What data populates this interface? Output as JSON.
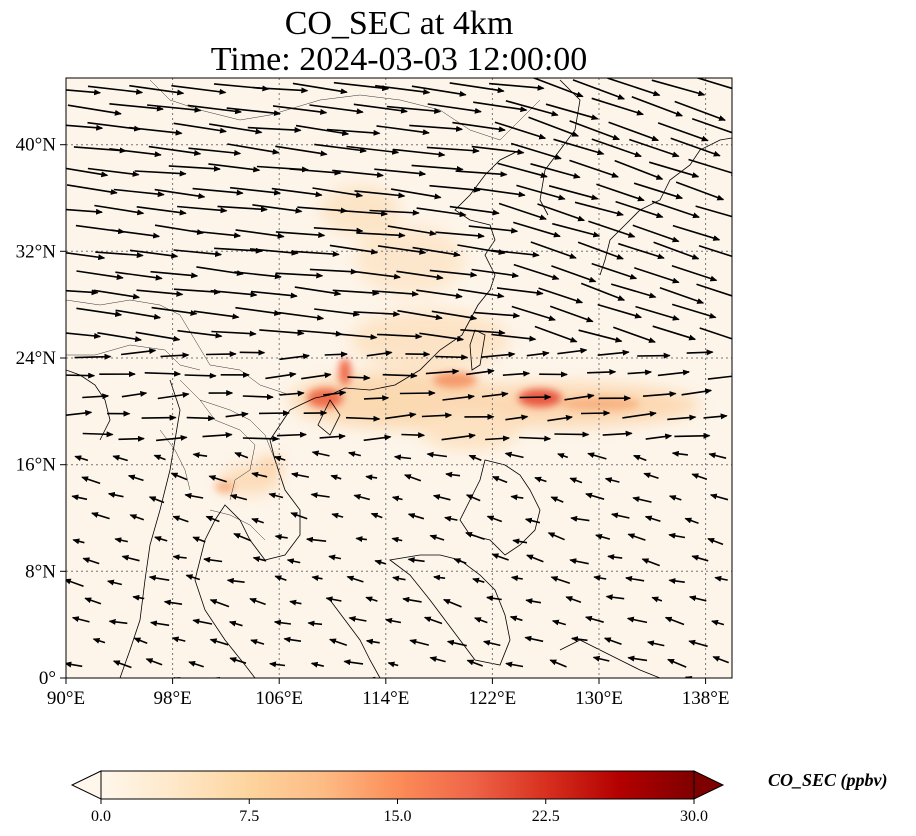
{
  "title": {
    "line1": "CO_SEC at 4km",
    "line2": "Time: 2024-03-03 12:00:00"
  },
  "map": {
    "lon_range": [
      90,
      140
    ],
    "lat_range": [
      0,
      45
    ],
    "lon_ticks": [
      "90°E",
      "98°E",
      "106°E",
      "114°E",
      "122°E",
      "130°E",
      "138°E"
    ],
    "lat_ticks": [
      "0°",
      "8°N",
      "16°N",
      "24°N",
      "32°N",
      "40°N"
    ],
    "gridlines": true,
    "field_variable": "CO_SEC",
    "wind_vectors": true
  },
  "colorbar": {
    "label": "CO_SEC (ppbv)",
    "ticks": [
      "0.0",
      "7.5",
      "15.0",
      "22.5",
      "30.0"
    ],
    "range": [
      0,
      30
    ],
    "extend": "both",
    "colormap": [
      "#fff7ec",
      "#fee8c8",
      "#fdd49e",
      "#fdbb84",
      "#fc8d59",
      "#ef6548",
      "#d7301f",
      "#b30000",
      "#7f0000"
    ]
  }
}
